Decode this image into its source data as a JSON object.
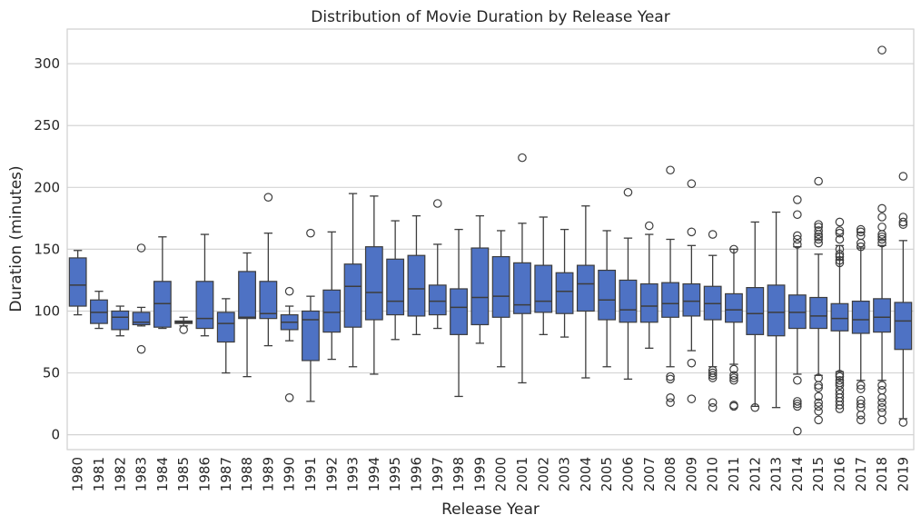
{
  "chart_data": {
    "type": "box",
    "title": "Distribution of Movie Duration by Release Year",
    "xlabel": "Release Year",
    "ylabel": "Duration (minutes)",
    "ylim": [
      -12,
      328
    ],
    "yticks": [
      "0",
      "50",
      "100",
      "150",
      "200",
      "250",
      "300"
    ],
    "grid": "horizontal",
    "box_color": "#4e72c4",
    "line_color": "#3d3d3d",
    "categories": [
      "1980",
      "1981",
      "1982",
      "1983",
      "1984",
      "1985",
      "1986",
      "1987",
      "1988",
      "1989",
      "1990",
      "1991",
      "1992",
      "1993",
      "1994",
      "1995",
      "1996",
      "1997",
      "1998",
      "1999",
      "2000",
      "2001",
      "2002",
      "2003",
      "2004",
      "2005",
      "2006",
      "2007",
      "2008",
      "2009",
      "2010",
      "2011",
      "2012",
      "2013",
      "2014",
      "2015",
      "2016",
      "2017",
      "2018",
      "2019"
    ],
    "boxes": [
      {
        "low": 97,
        "q1": 104,
        "median": 121,
        "q3": 143,
        "high": 149,
        "outliers": []
      },
      {
        "low": 86,
        "q1": 90,
        "median": 99,
        "q3": 109,
        "high": 116,
        "outliers": []
      },
      {
        "low": 80,
        "q1": 85,
        "median": 95,
        "q3": 100,
        "high": 104,
        "outliers": []
      },
      {
        "low": 88,
        "q1": 89,
        "median": 91,
        "q3": 99,
        "high": 103,
        "outliers": [
          151,
          69
        ]
      },
      {
        "low": 86,
        "q1": 87,
        "median": 106,
        "q3": 124,
        "high": 160,
        "outliers": []
      },
      {
        "low": 88,
        "q1": 90,
        "median": 91,
        "q3": 92,
        "high": 95,
        "outliers": [
          85
        ]
      },
      {
        "low": 80,
        "q1": 86,
        "median": 94,
        "q3": 124,
        "high": 162,
        "outliers": []
      },
      {
        "low": 50,
        "q1": 75,
        "median": 90,
        "q3": 99,
        "high": 110,
        "outliers": []
      },
      {
        "low": 47,
        "q1": 94,
        "median": 95,
        "q3": 132,
        "high": 147,
        "outliers": []
      },
      {
        "low": 72,
        "q1": 94,
        "median": 98,
        "q3": 124,
        "high": 163,
        "outliers": [
          192
        ]
      },
      {
        "low": 76,
        "q1": 85,
        "median": 91,
        "q3": 97,
        "high": 104,
        "outliers": [
          116,
          30
        ]
      },
      {
        "low": 27,
        "q1": 60,
        "median": 93,
        "q3": 100,
        "high": 112,
        "outliers": [
          163
        ]
      },
      {
        "low": 61,
        "q1": 83,
        "median": 99,
        "q3": 117,
        "high": 164,
        "outliers": []
      },
      {
        "low": 55,
        "q1": 87,
        "median": 120,
        "q3": 138,
        "high": 195,
        "outliers": []
      },
      {
        "low": 49,
        "q1": 93,
        "median": 115,
        "q3": 152,
        "high": 193,
        "outliers": []
      },
      {
        "low": 77,
        "q1": 97,
        "median": 108,
        "q3": 142,
        "high": 173,
        "outliers": []
      },
      {
        "low": 81,
        "q1": 96,
        "median": 118,
        "q3": 145,
        "high": 177,
        "outliers": []
      },
      {
        "low": 86,
        "q1": 97,
        "median": 108,
        "q3": 121,
        "high": 154,
        "outliers": [
          187
        ]
      },
      {
        "low": 31,
        "q1": 81,
        "median": 103,
        "q3": 118,
        "high": 166,
        "outliers": []
      },
      {
        "low": 74,
        "q1": 89,
        "median": 111,
        "q3": 151,
        "high": 177,
        "outliers": []
      },
      {
        "low": 55,
        "q1": 95,
        "median": 112,
        "q3": 144,
        "high": 165,
        "outliers": []
      },
      {
        "low": 42,
        "q1": 98,
        "median": 105,
        "q3": 139,
        "high": 171,
        "outliers": [
          224
        ]
      },
      {
        "low": 81,
        "q1": 99,
        "median": 108,
        "q3": 137,
        "high": 176,
        "outliers": []
      },
      {
        "low": 79,
        "q1": 98,
        "median": 116,
        "q3": 131,
        "high": 166,
        "outliers": []
      },
      {
        "low": 46,
        "q1": 100,
        "median": 122,
        "q3": 137,
        "high": 185,
        "outliers": []
      },
      {
        "low": 55,
        "q1": 93,
        "median": 109,
        "q3": 133,
        "high": 165,
        "outliers": []
      },
      {
        "low": 45,
        "q1": 91,
        "median": 101,
        "q3": 125,
        "high": 159,
        "outliers": [
          196
        ]
      },
      {
        "low": 70,
        "q1": 91,
        "median": 104,
        "q3": 122,
        "high": 162,
        "outliers": [
          169
        ]
      },
      {
        "low": 55,
        "q1": 95,
        "median": 106,
        "q3": 123,
        "high": 158,
        "outliers": [
          214,
          47,
          45,
          30,
          26
        ]
      },
      {
        "low": 68,
        "q1": 96,
        "median": 108,
        "q3": 122,
        "high": 153,
        "outliers": [
          203,
          164,
          58,
          29
        ]
      },
      {
        "low": 55,
        "q1": 93,
        "median": 106,
        "q3": 120,
        "high": 145,
        "outliers": [
          162,
          52,
          50,
          48,
          46,
          26,
          22
        ]
      },
      {
        "low": 57,
        "q1": 91,
        "median": 101,
        "q3": 114,
        "high": 150,
        "outliers": [
          150,
          53,
          48,
          46,
          44,
          24,
          23
        ]
      },
      {
        "low": 23,
        "q1": 81,
        "median": 98,
        "q3": 119,
        "high": 172,
        "outliers": [
          22
        ]
      },
      {
        "low": 22,
        "q1": 80,
        "median": 99,
        "q3": 121,
        "high": 180,
        "outliers": []
      },
      {
        "low": 49,
        "q1": 86,
        "median": 99,
        "q3": 113,
        "high": 152,
        "outliers": [
          190,
          178,
          161,
          158,
          154,
          44,
          27,
          25,
          23,
          3
        ]
      },
      {
        "low": 48,
        "q1": 86,
        "median": 96,
        "q3": 111,
        "high": 146,
        "outliers": [
          205,
          170,
          168,
          165,
          162,
          160,
          158,
          155,
          46,
          40,
          38,
          31,
          26,
          23,
          19,
          12
        ]
      },
      {
        "low": 51,
        "q1": 84,
        "median": 94,
        "q3": 106,
        "high": 153,
        "outliers": [
          172,
          165,
          163,
          158,
          150,
          146,
          144,
          141,
          139,
          49,
          47,
          44,
          42,
          40,
          36,
          33,
          30,
          27,
          24,
          21
        ]
      },
      {
        "low": 44,
        "q1": 82,
        "median": 93,
        "q3": 108,
        "high": 151,
        "outliers": [
          166,
          164,
          161,
          155,
          152,
          40,
          37,
          28,
          25,
          22,
          16,
          12
        ]
      },
      {
        "low": 44,
        "q1": 83,
        "median": 95,
        "q3": 110,
        "high": 153,
        "outliers": [
          311,
          183,
          176,
          168,
          162,
          160,
          158,
          155,
          40,
          36,
          30,
          26,
          22,
          18,
          12
        ]
      },
      {
        "low": 13,
        "q1": 69,
        "median": 92,
        "q3": 107,
        "high": 157,
        "outliers": [
          209,
          176,
          172,
          170,
          10
        ]
      }
    ]
  }
}
